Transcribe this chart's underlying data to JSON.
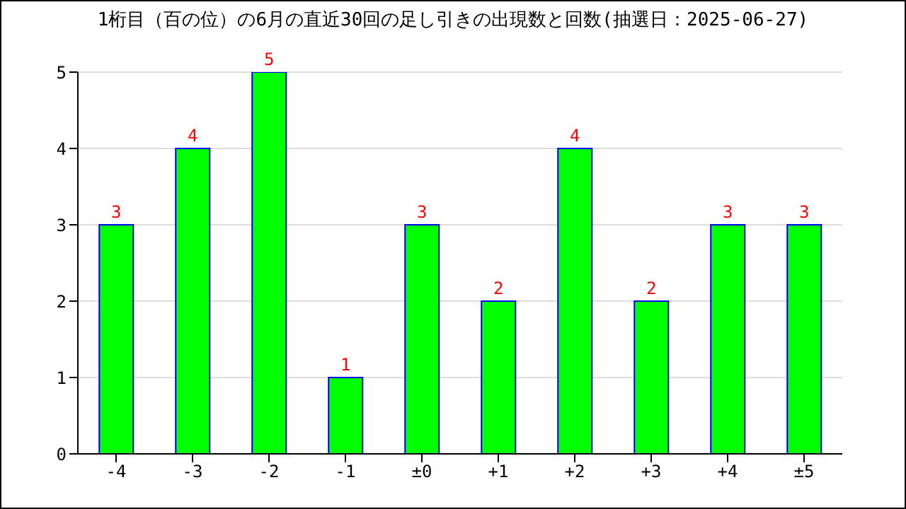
{
  "chart_data": {
    "type": "bar",
    "title": "1桁目（百の位）の6月の直近30回の足し引きの出現数と回数(抽選日：2025-06-27)",
    "categories": [
      "-4",
      "-3",
      "-2",
      "-1",
      "±0",
      "+1",
      "+2",
      "+3",
      "+4",
      "±5"
    ],
    "values": [
      3,
      4,
      5,
      1,
      3,
      2,
      4,
      2,
      3,
      3
    ],
    "color": "#00ff00",
    "ylim": [
      0,
      5
    ],
    "yticks": [
      0,
      1,
      2,
      3,
      4,
      5
    ],
    "grid": "y",
    "data_labels": true
  }
}
